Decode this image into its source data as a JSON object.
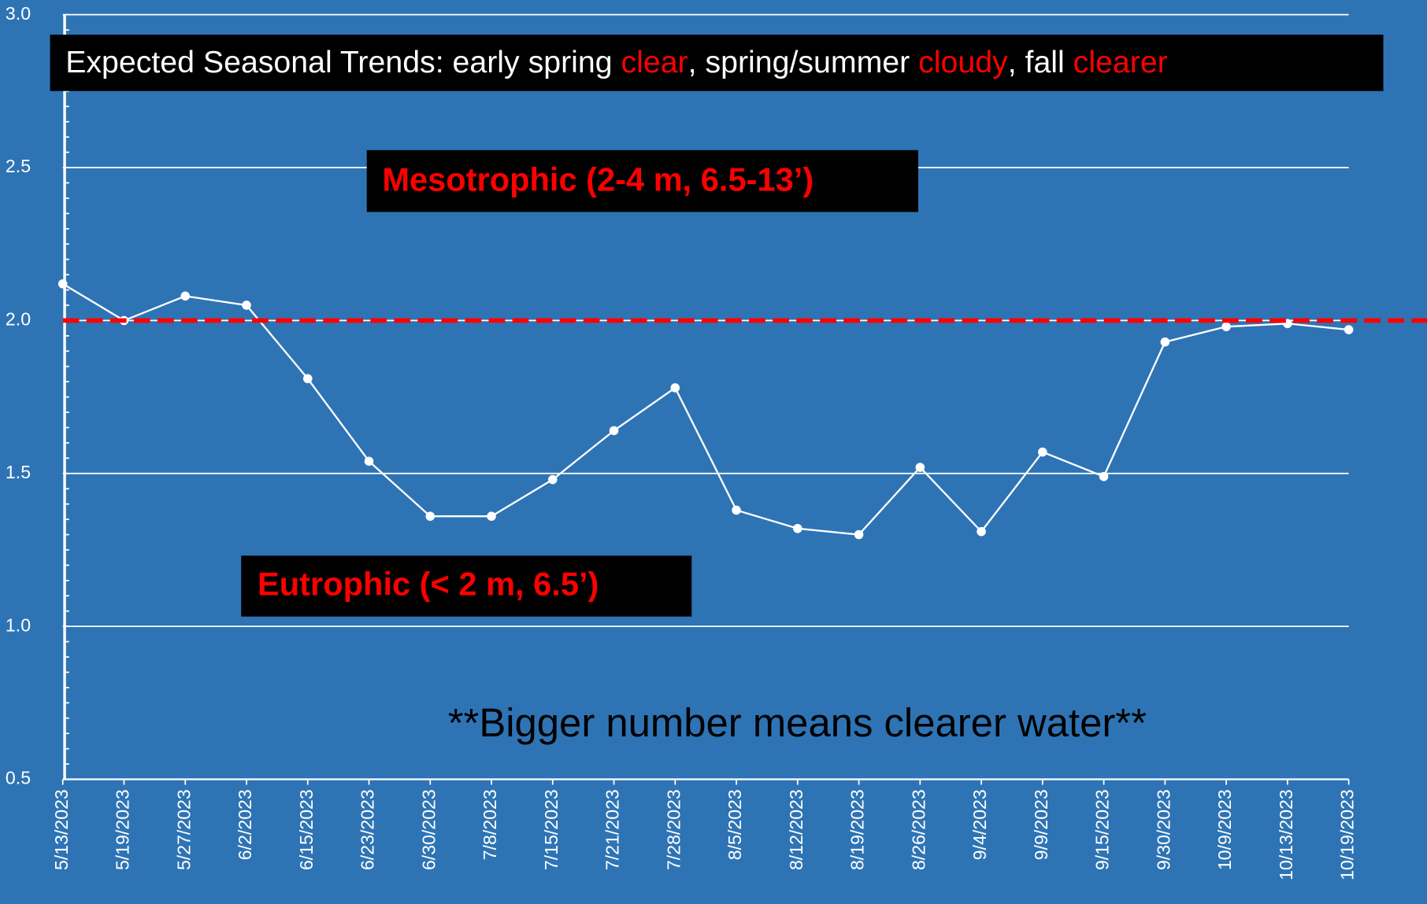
{
  "chart_data": {
    "type": "line",
    "categories": [
      "5/13/2023",
      "5/19/2023",
      "5/27/2023",
      "6/2/2023",
      "6/15/2023",
      "6/23/2023",
      "6/30/2023",
      "7/8/2023",
      "7/15/2023",
      "7/21/2023",
      "7/28/2023",
      "8/5/2023",
      "8/12/2023",
      "8/19/2023",
      "8/26/2023",
      "9/4/2023",
      "9/9/2023",
      "9/15/2023",
      "9/30/2023",
      "10/9/2023",
      "10/13/2023",
      "10/19/2023"
    ],
    "values": [
      2.12,
      2.0,
      2.08,
      2.05,
      1.81,
      1.54,
      1.36,
      1.36,
      1.48,
      1.64,
      1.78,
      1.38,
      1.32,
      1.3,
      1.52,
      1.31,
      1.57,
      1.49,
      1.93,
      1.98,
      1.99,
      1.97
    ],
    "color": "#ffffff",
    "ylim": [
      0.5,
      3.0
    ],
    "yticks": [
      {
        "value": 0.5,
        "label": "0.5"
      },
      {
        "value": 1,
        "label": "1.0"
      },
      {
        "value": 1.5,
        "label": "1.5"
      },
      {
        "value": 2,
        "label": "2.0"
      },
      {
        "value": 2.5,
        "label": "2.5"
      },
      {
        "value": 3,
        "label": "3.0"
      }
    ],
    "grid": true,
    "reference_line": {
      "value": 2,
      "color": "#ff0000"
    },
    "annotations": {
      "trends": [
        "Expected Seasonal Trends: early spring ",
        "clear",
        ", spring/summer ",
        "cloudy",
        ", fall ",
        "clearer"
      ],
      "mesotrophic": "Mesotrophic (2-4 m, 6.5-13’)",
      "eutrophic": "Eutrophic (< 2 m, 6.5’)",
      "note": "**Bigger number means clearer water**"
    }
  }
}
